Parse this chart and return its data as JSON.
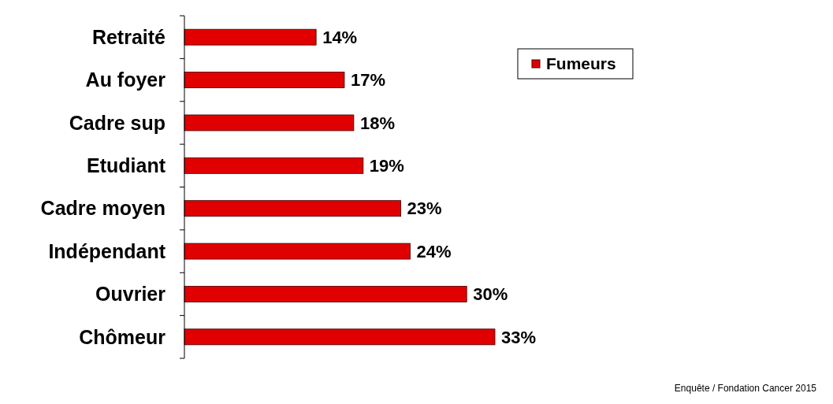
{
  "chart_data": {
    "type": "bar",
    "orientation": "horizontal",
    "categories": [
      "Retraité",
      "Au foyer",
      "Cadre sup",
      "Etudiant",
      "Cadre moyen",
      "Indépendant",
      "Ouvrier",
      "Chômeur"
    ],
    "series": [
      {
        "name": "Fumeurs",
        "color": "#e00000",
        "values": [
          14,
          17,
          18,
          19,
          23,
          24,
          30,
          33
        ],
        "value_labels": [
          "14%",
          "17%",
          "18%",
          "19%",
          "23%",
          "24%",
          "30%",
          "33%"
        ]
      }
    ],
    "legend": "top right",
    "grid": false,
    "annotations": [
      "Enquête / Fondation Cancer 2015"
    ]
  }
}
